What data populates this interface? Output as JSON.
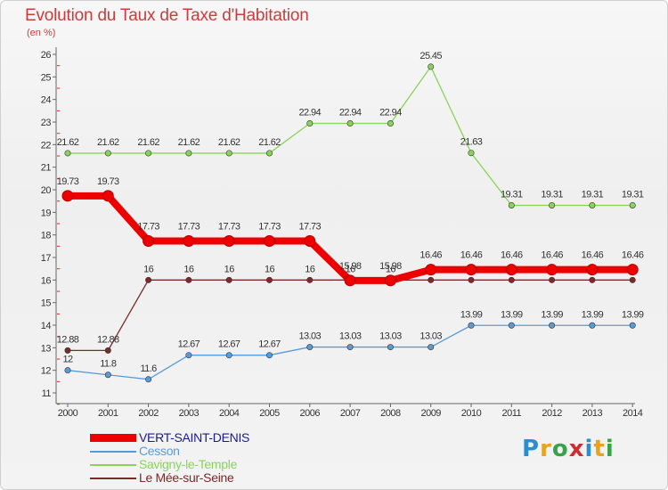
{
  "title": "Evolution du Taux de Taxe d'Habitation",
  "subtitle": "(en %)",
  "logo": "Proxiti",
  "chart_data": {
    "type": "line",
    "x": [
      "2000",
      "2001",
      "2002",
      "2003",
      "2004",
      "2005",
      "2006",
      "2007",
      "2008",
      "2009",
      "2010",
      "2011",
      "2012",
      "2013",
      "2014"
    ],
    "ylim": [
      11,
      26
    ],
    "yticks": [
      11,
      12,
      13,
      14,
      15,
      16,
      17,
      18,
      19,
      20,
      21,
      22,
      23,
      24,
      25,
      26
    ],
    "grid": false,
    "legend_position": "bottom-left",
    "series": [
      {
        "name": "VERT-SAINT-DENIS",
        "color": "#ee0000",
        "values": [
          19.73,
          19.73,
          17.73,
          17.73,
          17.73,
          17.73,
          17.73,
          15.98,
          15.98,
          16.46,
          16.46,
          16.46,
          16.46,
          16.46,
          16.46
        ],
        "labels": [
          "19.73",
          "19.73",
          "17.73",
          "17.73",
          "17.73",
          "17.73",
          "17.73",
          "15.98",
          "15.98",
          "16.46",
          "16.46",
          "16.46",
          "16.46",
          "16.46",
          "16.46"
        ]
      },
      {
        "name": "Cesson",
        "color": "#5b9bd5",
        "values": [
          12,
          11.8,
          11.6,
          12.67,
          12.67,
          12.67,
          13.03,
          13.03,
          13.03,
          13.03,
          13.99,
          13.99,
          13.99,
          13.99,
          13.99
        ],
        "labels": [
          "12",
          "11.8",
          "11.6",
          "12.67",
          "12.67",
          "12.67",
          "13.03",
          "13.03",
          "13.03",
          "13.03",
          "13.99",
          "13.99",
          "13.99",
          "13.99",
          "13.99"
        ]
      },
      {
        "name": "Savigny-le-Temple",
        "color": "#8ad35a",
        "values": [
          21.62,
          21.62,
          21.62,
          21.62,
          21.62,
          21.62,
          22.94,
          22.94,
          22.94,
          25.45,
          21.63,
          19.31,
          19.31,
          19.31,
          19.31
        ],
        "labels": [
          "21.62",
          "21.62",
          "21.62",
          "21.62",
          "21.62",
          "21.62",
          "22.94",
          "22.94",
          "22.94",
          "25.45",
          "21.63",
          "19.31",
          "19.31",
          "19.31",
          "19.31"
        ]
      },
      {
        "name": "Le Mée-sur-Seine",
        "color": "#7a2a2a",
        "values": [
          12.88,
          12.88,
          16,
          16,
          16,
          16,
          16,
          16,
          16,
          16,
          16,
          16,
          16,
          16,
          16
        ],
        "labels": [
          "12.88",
          "12.88",
          "16",
          "16",
          "16",
          "16",
          "16",
          "16",
          "16",
          "16",
          "16",
          "16",
          "16",
          "16",
          "16"
        ]
      }
    ]
  }
}
